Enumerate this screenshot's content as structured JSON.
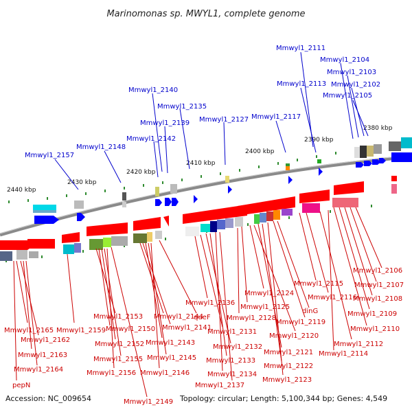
{
  "title": "Marinomonas sp. MWYL1, complete genome",
  "footer": {
    "accession": "Accession: NC_009654",
    "summary": "Topology: circular; Length: 5,100,344 bp; Genes: 4,549"
  },
  "colors": {
    "forward_label": "#0000cc",
    "reverse_label": "#cc0000",
    "forward_gene": "#0000ff",
    "reverse_gene": "#ff0000",
    "backbone": "#888888"
  },
  "kbp_ticks": [
    "2440 kbp",
    "2430 kbp",
    "2420 kbp",
    "2410 kbp",
    "2400 kbp",
    "2390 kbp",
    "2380 kbp"
  ],
  "forward_labels": [
    "Mmwyl1_2157",
    "Mmwyl1_2148",
    "Mmwyl1_2142",
    "Mmwyl1_2139",
    "Mmwyl1_2140",
    "Mmwyl1_2135",
    "Mmwyl1_2127",
    "Mmwyl1_2117",
    "Mmwyl1_2113",
    "Mmwyl1_2111",
    "Mmwyl1_2104",
    "Mmwyl1_2103",
    "Mmwyl1_2102",
    "Mmwyl1_2105"
  ],
  "reverse_labels": [
    "Mmwyl1_2165",
    "Mmwyl1_2162",
    "Mmwyl1_2163",
    "Mmwyl1_2164",
    "pepN",
    "Mmwyl1_2159",
    "Mmwyl1_2153",
    "Mmwyl1_2150",
    "Mmwyl1_2152",
    "Mmwyl1_2155",
    "Mmwyl1_2156",
    "Mmwyl1_2149",
    "Mmwyl1_2144",
    "Mmwyl1_2141",
    "Mmwyl1_2143",
    "Mmwyl1_2145",
    "Mmwyl1_2146",
    "queF",
    "Mmwyl1_2136",
    "Mmwyl1_2131",
    "Mmwyl1_2132",
    "Mmwyl1_2133",
    "Mmwyl1_2134",
    "Mmwyl1_2137",
    "Mmwyl1_2128",
    "Mmwyl1_2125",
    "Mmwyl1_2124",
    "Mmwyl1_2120",
    "Mmwyl1_2121",
    "Mmwyl1_2122",
    "Mmwyl1_2123",
    "Mmwyl1_2119",
    "dinG",
    "Mmwyl1_2115",
    "Mmwyl1_2116",
    "Mmwyl1_2112",
    "Mmwyl1_2114",
    "Mmwyl1_2110",
    "Mmwyl1_2109",
    "Mmwyl1_2108",
    "Mmwyl1_2107",
    "Mmwyl1_2106"
  ]
}
